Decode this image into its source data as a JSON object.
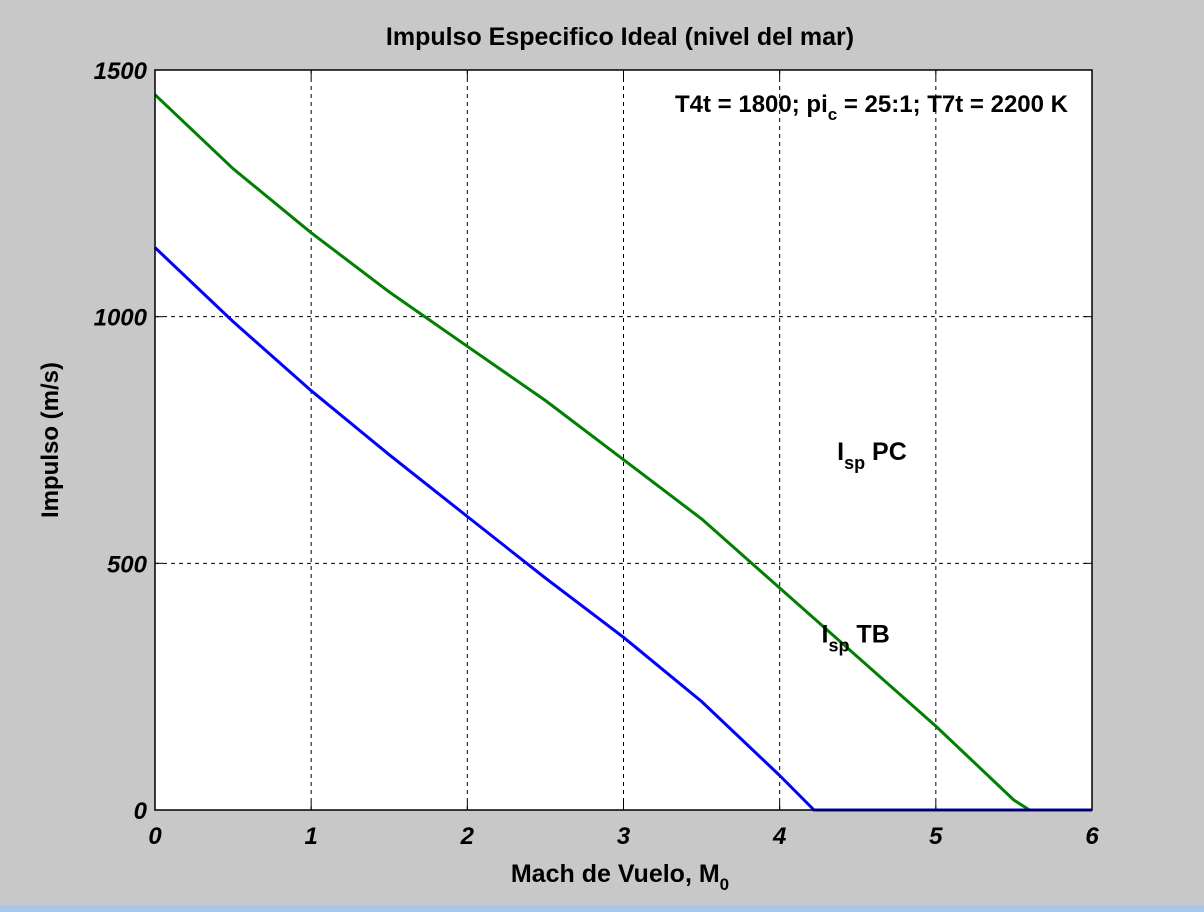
{
  "chart_data": {
    "type": "line",
    "title": "Impulso Especifico Ideal (nivel del mar)",
    "xlabel": {
      "main": "Mach de Vuelo, M",
      "sub": "0"
    },
    "ylabel": "Impulso (m/s)",
    "xlim": [
      0,
      6
    ],
    "ylim": [
      0,
      1500
    ],
    "xticks": [
      0,
      1,
      2,
      3,
      4,
      5,
      6
    ],
    "yticks": [
      0,
      500,
      1000,
      1500
    ],
    "grid": true,
    "annotation": {
      "parts": [
        {
          "text": "T4t = 1800; pi",
          "sub": false
        },
        {
          "text": "c",
          "sub": true
        },
        {
          "text": " = 25:1; T7t = 2200 K",
          "sub": false
        }
      ]
    },
    "series": [
      {
        "name": "I_sp PC",
        "label": {
          "main": "I",
          "sub": "sp",
          "rest": " PC"
        },
        "color": "#008000",
        "x": [
          0,
          0.5,
          1.0,
          1.5,
          2.0,
          2.5,
          3.0,
          3.5,
          4.0,
          4.5,
          5.0,
          5.5,
          5.6,
          6.0
        ],
        "y": [
          1450,
          1300,
          1170,
          1050,
          940,
          830,
          710,
          590,
          450,
          310,
          170,
          20,
          0,
          0
        ]
      },
      {
        "name": "I_sp TB",
        "label": {
          "main": "I",
          "sub": "sp",
          "rest": " TB"
        },
        "color": "#0000ff",
        "x": [
          0,
          0.5,
          1.0,
          1.5,
          2.0,
          2.5,
          3.0,
          3.5,
          4.0,
          4.22,
          4.5,
          5.0,
          5.5,
          6.0
        ],
        "y": [
          1140,
          990,
          850,
          720,
          595,
          470,
          350,
          220,
          70,
          0,
          0,
          0,
          0,
          0
        ]
      }
    ]
  },
  "colors": {
    "figure_bg": "#c8c8c8",
    "axes_bg": "#ffffff",
    "bottom_strip": "#a9c7e8"
  }
}
